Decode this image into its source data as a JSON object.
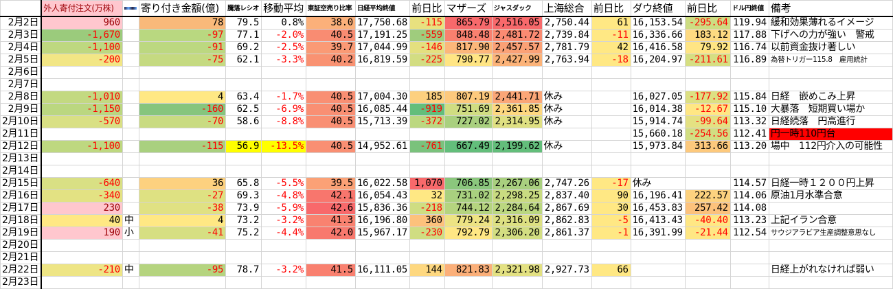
{
  "headers": [
    "",
    "外人寄付注文(万株)",
    "",
    "寄り付き金額(億)",
    "騰落レシオ",
    "移動平均",
    "東証空売り比率",
    "日経平均終値",
    "前日比",
    "マザーズ",
    "ジャスダック",
    "上海総合",
    "前日比",
    "ダウ終値",
    "前日比",
    "ドル円終値",
    "備考"
  ],
  "colors": {
    "negative_text": "#FF0000",
    "pink_text": "#9C0006",
    "pink_bg": "#FFC7CE",
    "highlight_yellow": "#FFFF00",
    "alert_red": "#FF0000"
  },
  "rows": [
    {
      "date": "2月2日",
      "values": [
        "960",
        "",
        "78",
        "79.5",
        "0.8%",
        "38.0",
        "17,750.68",
        "-115",
        "865.79",
        "2,516.05",
        "2,750.44",
        "61",
        "16,153.54",
        "-295.64",
        "119.94",
        "緩和効果薄れるイメージ"
      ],
      "bg": [
        "#FFC7CE",
        "",
        "#F9B97A",
        "",
        "",
        "#FBB07A",
        "",
        "#E8E17F",
        "#F8696B",
        "#F8696B",
        "",
        "#FFE884",
        "",
        "#CDDD82",
        "",
        ""
      ]
    },
    {
      "date": "2月3日",
      "values": [
        "-1,670",
        "",
        "-97",
        "77.1",
        "-2.0%",
        "40.5",
        "17,191.25",
        "-559",
        "848.48",
        "2,481.72",
        "2,739.84",
        "-11",
        "16,336.66",
        "183.12",
        "117.88",
        "下げへの力が強い　警戒"
      ],
      "bg": [
        "#9BCB7C",
        "",
        "#B9D880",
        "",
        "",
        "#F98C72",
        "",
        "#9FCC7D",
        "#F9806F",
        "#FA8B72",
        "",
        "#FFE884",
        "",
        "#FEDA81",
        "",
        ""
      ]
    },
    {
      "date": "2月4日",
      "values": [
        "-1,100",
        "",
        "-91",
        "69.2",
        "-2.5%",
        "39.7",
        "17,044.99",
        "-146",
        "817.90",
        "2,457.57",
        "2,781.79",
        "42",
        "16,416.58",
        "79.92",
        "116.74",
        "以前資金抜け著しい"
      ],
      "bg": [
        "#BED880",
        "",
        "#BCD880",
        "",
        "",
        "#FA9A75",
        "",
        "#E4E07F",
        "#FCB77A",
        "#FBA176",
        "",
        "#FFE884",
        "",
        "#FFE584",
        "",
        ""
      ]
    },
    {
      "date": "2月5日",
      "values": [
        "-200",
        "",
        "-75",
        "62.1",
        "-3.3%",
        "40.2",
        "16,819.59",
        "-225",
        "790.77",
        "2,427.99",
        "2,763.94",
        "-18",
        "16,204.97",
        "-211.61",
        "116.89",
        "為替トリガー115.8　雇用統計"
      ],
      "bg": [
        "#F2E685",
        "",
        "#C5DA81",
        "",
        "",
        "#F99272",
        "",
        "#D3DD82",
        "#FFE584",
        "#FCB379",
        "",
        "#FFE884",
        "",
        "#D6DF82",
        "",
        ""
      ]
    },
    {
      "date": "2月6日",
      "values": [
        "",
        "",
        "",
        "",
        "",
        "",
        "",
        "",
        "",
        "",
        "",
        "",
        "",
        "",
        "",
        ""
      ],
      "bg": []
    },
    {
      "date": "2月7日",
      "values": [
        "",
        "",
        "",
        "",
        "",
        "",
        "",
        "",
        "",
        "",
        "",
        "",
        "",
        "",
        "",
        ""
      ],
      "bg": []
    },
    {
      "date": "2月8日",
      "values": [
        "-1,010",
        "",
        "4",
        "63.4",
        "-1.7%",
        "40.5",
        "17,004.30",
        "185",
        "807.19",
        "2,441.71",
        "休み",
        "",
        "16,027.05",
        "-177.92",
        "115.84",
        "日経　嵌めこみ上昇"
      ],
      "bg": [
        "#C3D981",
        "",
        "#FFE884",
        "",
        "",
        "#F98F73",
        "",
        "#FDD07F",
        "#FDC97D",
        "#FBA677",
        "",
        "",
        "",
        "#DDE082",
        "",
        ""
      ]
    },
    {
      "date": "2月9日",
      "values": [
        "-1,150",
        "",
        "-160",
        "62.5",
        "-6.9%",
        "40.5",
        "16,085.44",
        "-919",
        "751.69",
        "2,361.85",
        "休み",
        "",
        "16,014.38",
        "-12.67",
        "115.10",
        "大暴落　短期買い場か"
      ],
      "bg": [
        "#BBD780",
        "",
        "#86C57D",
        "",
        "",
        "#F98F73",
        "",
        "#63BE7B",
        "#D0DD82",
        "#FED880",
        "",
        "",
        "",
        "#FFE784",
        "",
        ""
      ]
    },
    {
      "date": "2月10日",
      "values": [
        "-570",
        "",
        "-70",
        "58.6",
        "-8.8%",
        "40.5",
        "15,713.39",
        "-372",
        "727.02",
        "2,314.95",
        "休み",
        "",
        "15,914.74",
        "-99.64",
        "113.32",
        "日経続落　円高進行"
      ],
      "bg": [
        "#D9E084",
        "",
        "#C9DB81",
        "",
        "",
        "#F98F73",
        "",
        "#BCD880",
        "#A9D07F",
        "#DFE082",
        "",
        "",
        "",
        "#E4E182",
        "",
        ""
      ]
    },
    {
      "date": "2月11日",
      "values": [
        "",
        "",
        "",
        "",
        "",
        "",
        "",
        "",
        "",
        "",
        "",
        "",
        "15,660.18",
        "-254.56",
        "112.41",
        "円一時110円台"
      ],
      "bg": [
        "",
        "",
        "",
        "",
        "",
        "",
        "",
        "",
        "",
        "",
        "",
        "",
        "",
        "#D2DE82",
        "",
        "#FF0000"
      ]
    },
    {
      "date": "2月12日",
      "values": [
        "-1,100",
        "",
        "-115",
        "56.9",
        "-13.5%",
        "40.5",
        "14,952.61",
        "-761",
        "667.49",
        "2,199.62",
        "休み",
        "",
        "15,973.84",
        "313.66",
        "113.20",
        "場中　112円介入の可能性"
      ],
      "bg": [
        "#BED880",
        "",
        "#A9D07F",
        "#FFFF00",
        "#FFFF00",
        "#F98F73",
        "",
        "#7AC27C",
        "#63BE7B",
        "#63BE7B",
        "",
        "",
        "",
        "#FDC97D",
        "",
        ""
      ]
    },
    {
      "date": "2月13日",
      "values": [
        "",
        "",
        "",
        "",
        "",
        "",
        "",
        "",
        "",
        "",
        "",
        "",
        "",
        "",
        "",
        ""
      ],
      "bg": []
    },
    {
      "date": "2月14日",
      "values": [
        "",
        "",
        "",
        "",
        "",
        "",
        "",
        "",
        "",
        "",
        "",
        "",
        "",
        "",
        "",
        ""
      ],
      "bg": []
    },
    {
      "date": "2月15日",
      "values": [
        "-640",
        "",
        "36",
        "65.8",
        "-5.5%",
        "39.5",
        "16,022.58",
        "1,070",
        "706.85",
        "2,267.06",
        "2,747.26",
        "-17",
        "休み",
        "",
        "114.57",
        "日経一時１２００円上昇"
      ],
      "bg": [
        "#D9E084",
        "",
        "#FDD17F",
        "",
        "",
        "#FBA176",
        "",
        "#F8696B",
        "#8BC77D",
        "#A9D07F",
        "",
        "#FFE884",
        "",
        "",
        "",
        ""
      ]
    },
    {
      "date": "2月16日",
      "values": [
        "-340",
        "",
        "-27",
        "69.3",
        "-4.8%",
        "42.1",
        "16,054.43",
        "32",
        "731.02",
        "2,298.25",
        "2,837.40",
        "90",
        "16,196.41",
        "222.57",
        "114.06",
        "原油1月水準合意"
      ],
      "bg": [
        "#E3E283",
        "",
        "#DEE182",
        "",
        "",
        "#F8766D",
        "",
        "#FFE884",
        "#A9D07F",
        "#C9DB81",
        "",
        "#FFE884",
        "",
        "#FDD27F",
        "",
        ""
      ]
    },
    {
      "date": "2月17日",
      "values": [
        "230",
        "",
        "-38",
        "73.9",
        "-5.9%",
        "42.6",
        "15,836.36",
        "-218",
        "744.12",
        "2,284.64",
        "2,867.69",
        "30",
        "16,453.83",
        "257.42",
        "114.08",
        ""
      ],
      "bg": [
        "#FFC7CE",
        "",
        "#E0E183",
        "",
        "",
        "#F8696B",
        "",
        "#CFDD82",
        "#B5D47F",
        "#BBD780",
        "",
        "#FFE884",
        "",
        "#FCC27C",
        "",
        ""
      ]
    },
    {
      "date": "2月18日",
      "values": [
        "40",
        "中",
        "4",
        "73.2",
        "-3.2%",
        "41.3",
        "16,196.80",
        "360",
        "779.24",
        "2,316.09",
        "2,862.83",
        "-5",
        "16,413.43",
        "-40.40",
        "113.23",
        "上記イラン合意"
      ],
      "bg": [
        "#FFE884",
        "",
        "#FFE884",
        "",
        "",
        "#F98270",
        "",
        "#FDC17C",
        "#EDE383",
        "#DDE082",
        "",
        "#FFE884",
        "",
        "#FFE784",
        "",
        ""
      ]
    },
    {
      "date": "2月19日",
      "values": [
        "190",
        "小",
        "-41",
        "75.2",
        "-4.4%",
        "42.0",
        "15,967.17",
        "-230",
        "792.79",
        "2,306.20",
        "2,861.37",
        "-1",
        "16,391.99",
        "-21.44",
        "112.54",
        "サウジアラビア生産調整意思なし"
      ],
      "bg": [
        "#FFC7CE",
        "",
        "#D6DF82",
        "",
        "",
        "#F8796E",
        "",
        "#D0DD82",
        "#FFE784",
        "#D3DE82",
        "",
        "#FFE884",
        "",
        "#FFE784",
        "",
        ""
      ]
    },
    {
      "date": "2月20日",
      "values": [
        "",
        "",
        "",
        "",
        "",
        "",
        "",
        "",
        "",
        "",
        "",
        "",
        "",
        "",
        "",
        ""
      ],
      "bg": []
    },
    {
      "date": "2月21日",
      "values": [
        "",
        "",
        "",
        "",
        "",
        "",
        "",
        "",
        "",
        "",
        "",
        "",
        "",
        "",
        "",
        ""
      ],
      "bg": []
    },
    {
      "date": "2月22日",
      "values": [
        "-210",
        "中",
        "-95",
        "78.7",
        "-3.2%",
        "41.5",
        "16,111.05",
        "144",
        "821.83",
        "2,321.98",
        "2,927.73",
        "66",
        "",
        "",
        "",
        "日経上がれなければ弱い"
      ],
      "bg": [
        "#EEE585",
        "",
        "#B5D47F",
        "",
        "",
        "#F9806F",
        "",
        "#FED880",
        "#FBAF79",
        "#E3E182",
        "",
        "#FFE884",
        "",
        "",
        "",
        ""
      ]
    },
    {
      "date": "2月23日",
      "values": [
        "",
        "",
        "",
        "",
        "",
        "",
        "",
        "",
        "",
        "",
        "",
        "",
        "",
        "",
        "",
        ""
      ],
      "bg": []
    }
  ]
}
